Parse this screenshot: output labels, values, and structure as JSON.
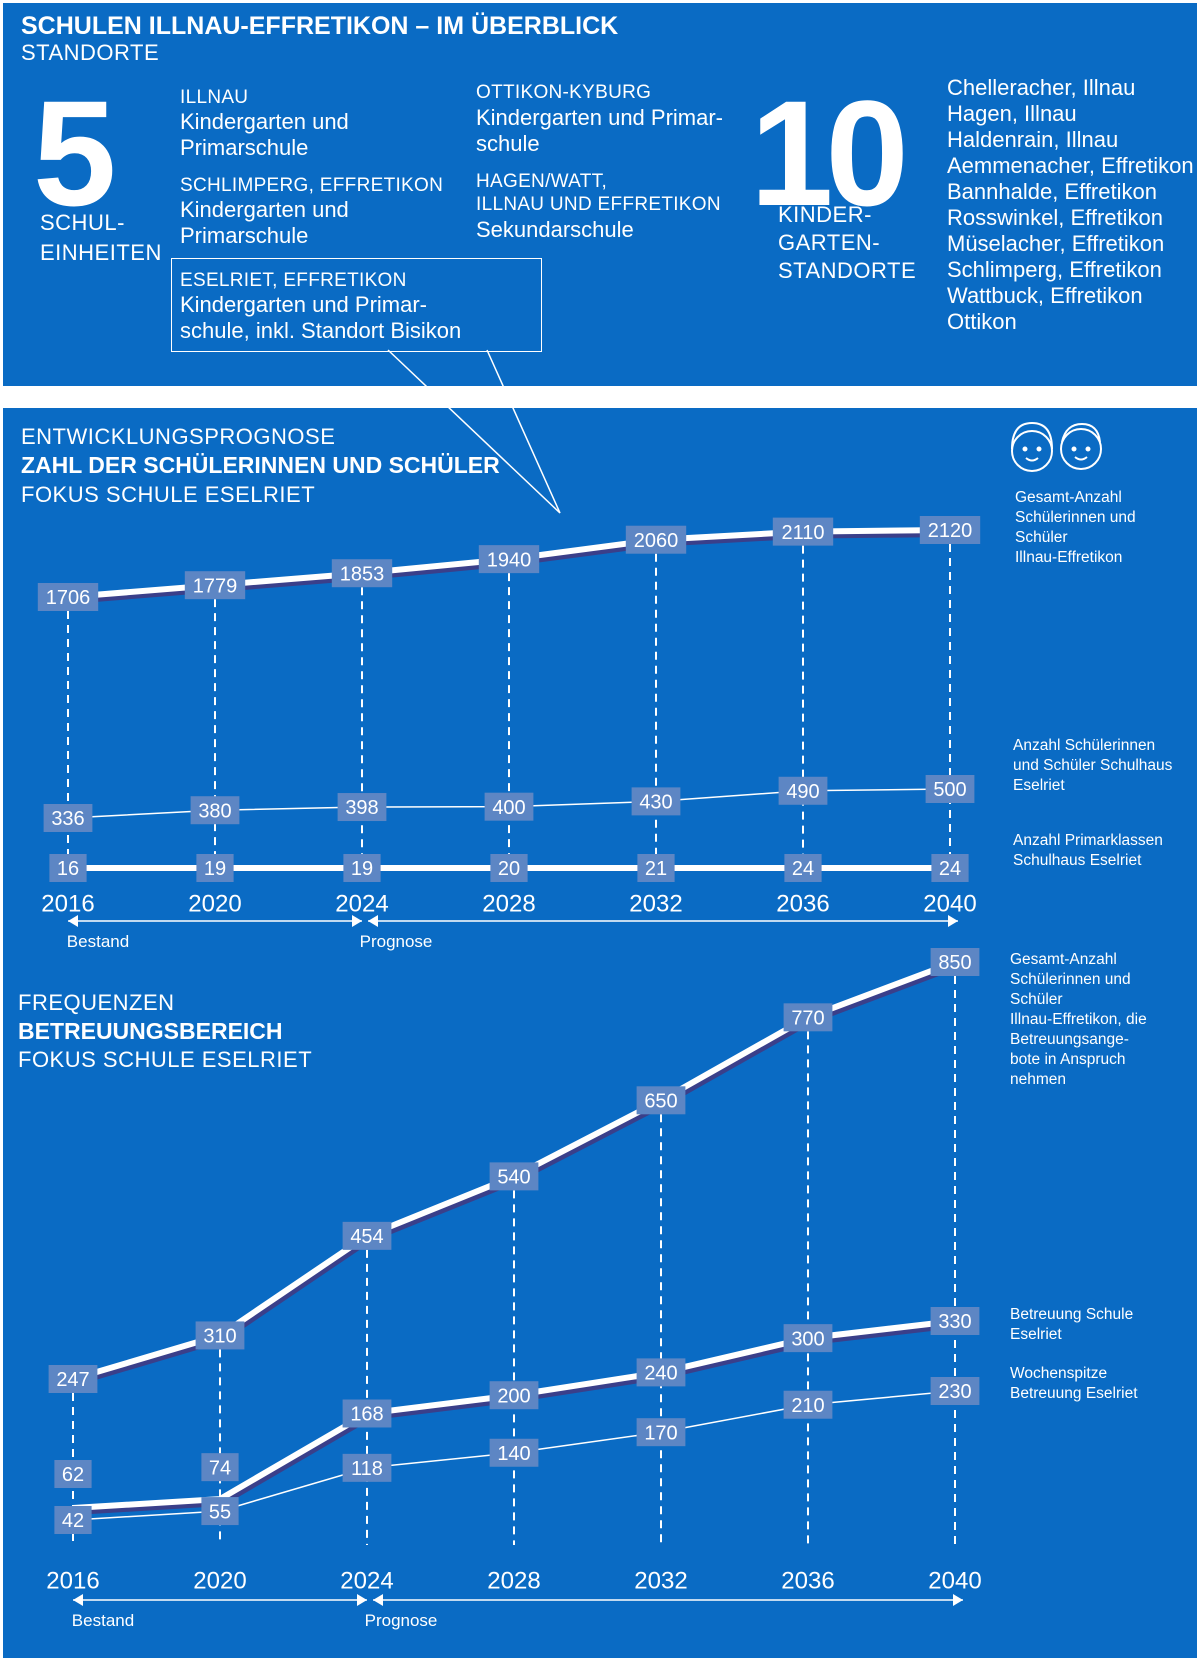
{
  "header": {
    "title": "SCHULEN ILLNAU-EFFRETIKON – IM ÜBERBLICK",
    "subtitle": "STANDORTE"
  },
  "schools": {
    "count": "5",
    "count_label_1": "SCHUL-",
    "count_label_2": "EINHEITEN",
    "units": [
      {
        "name": "ILLNAU",
        "desc_1": "Kindergarten und",
        "desc_2": "Primarschule"
      },
      {
        "name": "SCHLIMPERG, EFFRETIKON",
        "desc_1": "Kindergarten und",
        "desc_2": "Primarschule"
      },
      {
        "name": "ESELRIET, EFFRETIKON",
        "desc_1": "Kindergarten und Primar-",
        "desc_2": "schule, inkl. Standort Bisikon"
      },
      {
        "name": "OTTIKON-KYBURG",
        "desc_1": "Kindergarten und Primar-",
        "desc_2": "schule"
      },
      {
        "name": "HAGEN/WATT,",
        "name_2": "ILLNAU UND EFFRETIKON",
        "desc_1": "Sekundarschule"
      }
    ]
  },
  "kindergartens": {
    "count": "10",
    "label_1": "KINDER-",
    "label_2": "GARTEN-",
    "label_3": "STANDORTE",
    "locations": [
      "Chelleracher, Illnau",
      "Hagen, Illnau",
      "Haldenrain, Illnau",
      "Aemmenacher, Effretikon",
      "Bannhalde, Effretikon",
      "Rosswinkel, Effretikon",
      "Müselacher, Effretikon",
      "Schlimperg, Effretikon",
      "Wattbuck, Effretikon",
      "Ottikon"
    ]
  },
  "section1": {
    "line1": "ENTWICKLUNGSPROGNOSE",
    "line2": "ZAHL DER SCHÜLERINNEN UND SCHÜLER",
    "line3": "FOKUS SCHULE ESELRIET"
  },
  "section2": {
    "line1": "FREQUENZEN",
    "line2": "BETREUUNGSBEREICH",
    "line3": "FOKUS SCHULE ESELRIET"
  },
  "colors": {
    "panel": "#0A6BC4",
    "label_box": "#5D86C4",
    "line": "#ffffff",
    "shadow": "#3A3F8A"
  },
  "chart_data": [
    {
      "type": "line",
      "title": "ENTWICKLUNGSPROGNOSE – ZAHL DER SCHÜLERINNEN UND SCHÜLER – FOKUS SCHULE ESELRIET",
      "x": [
        "2016",
        "2020",
        "2024",
        "2028",
        "2032",
        "2036",
        "2040"
      ],
      "bestand_label": "Bestand",
      "prognose_label": "Prognose",
      "series": [
        {
          "name": "Gesamt-Anzahl Schülerinnen und Schüler Illnau-Effretikon",
          "values": [
            1706,
            1779,
            1853,
            1940,
            2060,
            2110,
            2120
          ]
        },
        {
          "name": "Anzahl Schülerinnen und Schüler Schulhaus Eselriet",
          "values": [
            336,
            380,
            398,
            400,
            430,
            490,
            500
          ]
        },
        {
          "name": "Anzahl Primarklassen Schulhaus Eselriet",
          "values": [
            16,
            19,
            19,
            20,
            21,
            24,
            24
          ]
        }
      ],
      "legend_lines": [
        [
          "Gesamt-Anzahl",
          "Schülerinnen und",
          "Schüler",
          "Illnau-Effretikon"
        ],
        [
          "Anzahl Schülerinnen",
          "und Schüler Schulhaus",
          "Eselriet"
        ],
        [
          "Anzahl Primarklassen",
          "Schulhaus Eselriet"
        ]
      ]
    },
    {
      "type": "line",
      "title": "FREQUENZEN BETREUUNGSBEREICH – FOKUS SCHULE ESELRIET",
      "x": [
        "2016",
        "2020",
        "2024",
        "2028",
        "2032",
        "2036",
        "2040"
      ],
      "bestand_label": "Bestand",
      "prognose_label": "Prognose",
      "series": [
        {
          "name": "Gesamt-Anzahl Schülerinnen und Schüler Illnau-Effretikon, die Betreuungsangebote in Anspruch nehmen",
          "values": [
            247,
            310,
            454,
            540,
            650,
            770,
            850
          ]
        },
        {
          "name": "Betreuung Schule Eselriet",
          "values": [
            62,
            74,
            168,
            200,
            240,
            300,
            330
          ]
        },
        {
          "name": "Wochenspitze Betreuung Eselriet",
          "values": [
            42,
            55,
            118,
            140,
            170,
            210,
            230
          ]
        }
      ],
      "legend_lines": [
        [
          "Gesamt-Anzahl",
          "Schülerinnen und",
          "Schüler",
          "Illnau-Effretikon, die",
          "Betreuungsange-",
          "bote in Anspruch",
          "nehmen"
        ],
        [
          "Betreuung Schule",
          "Eselriet"
        ],
        [
          "Wochenspitze",
          "Betreuung Eselriet"
        ]
      ]
    }
  ]
}
